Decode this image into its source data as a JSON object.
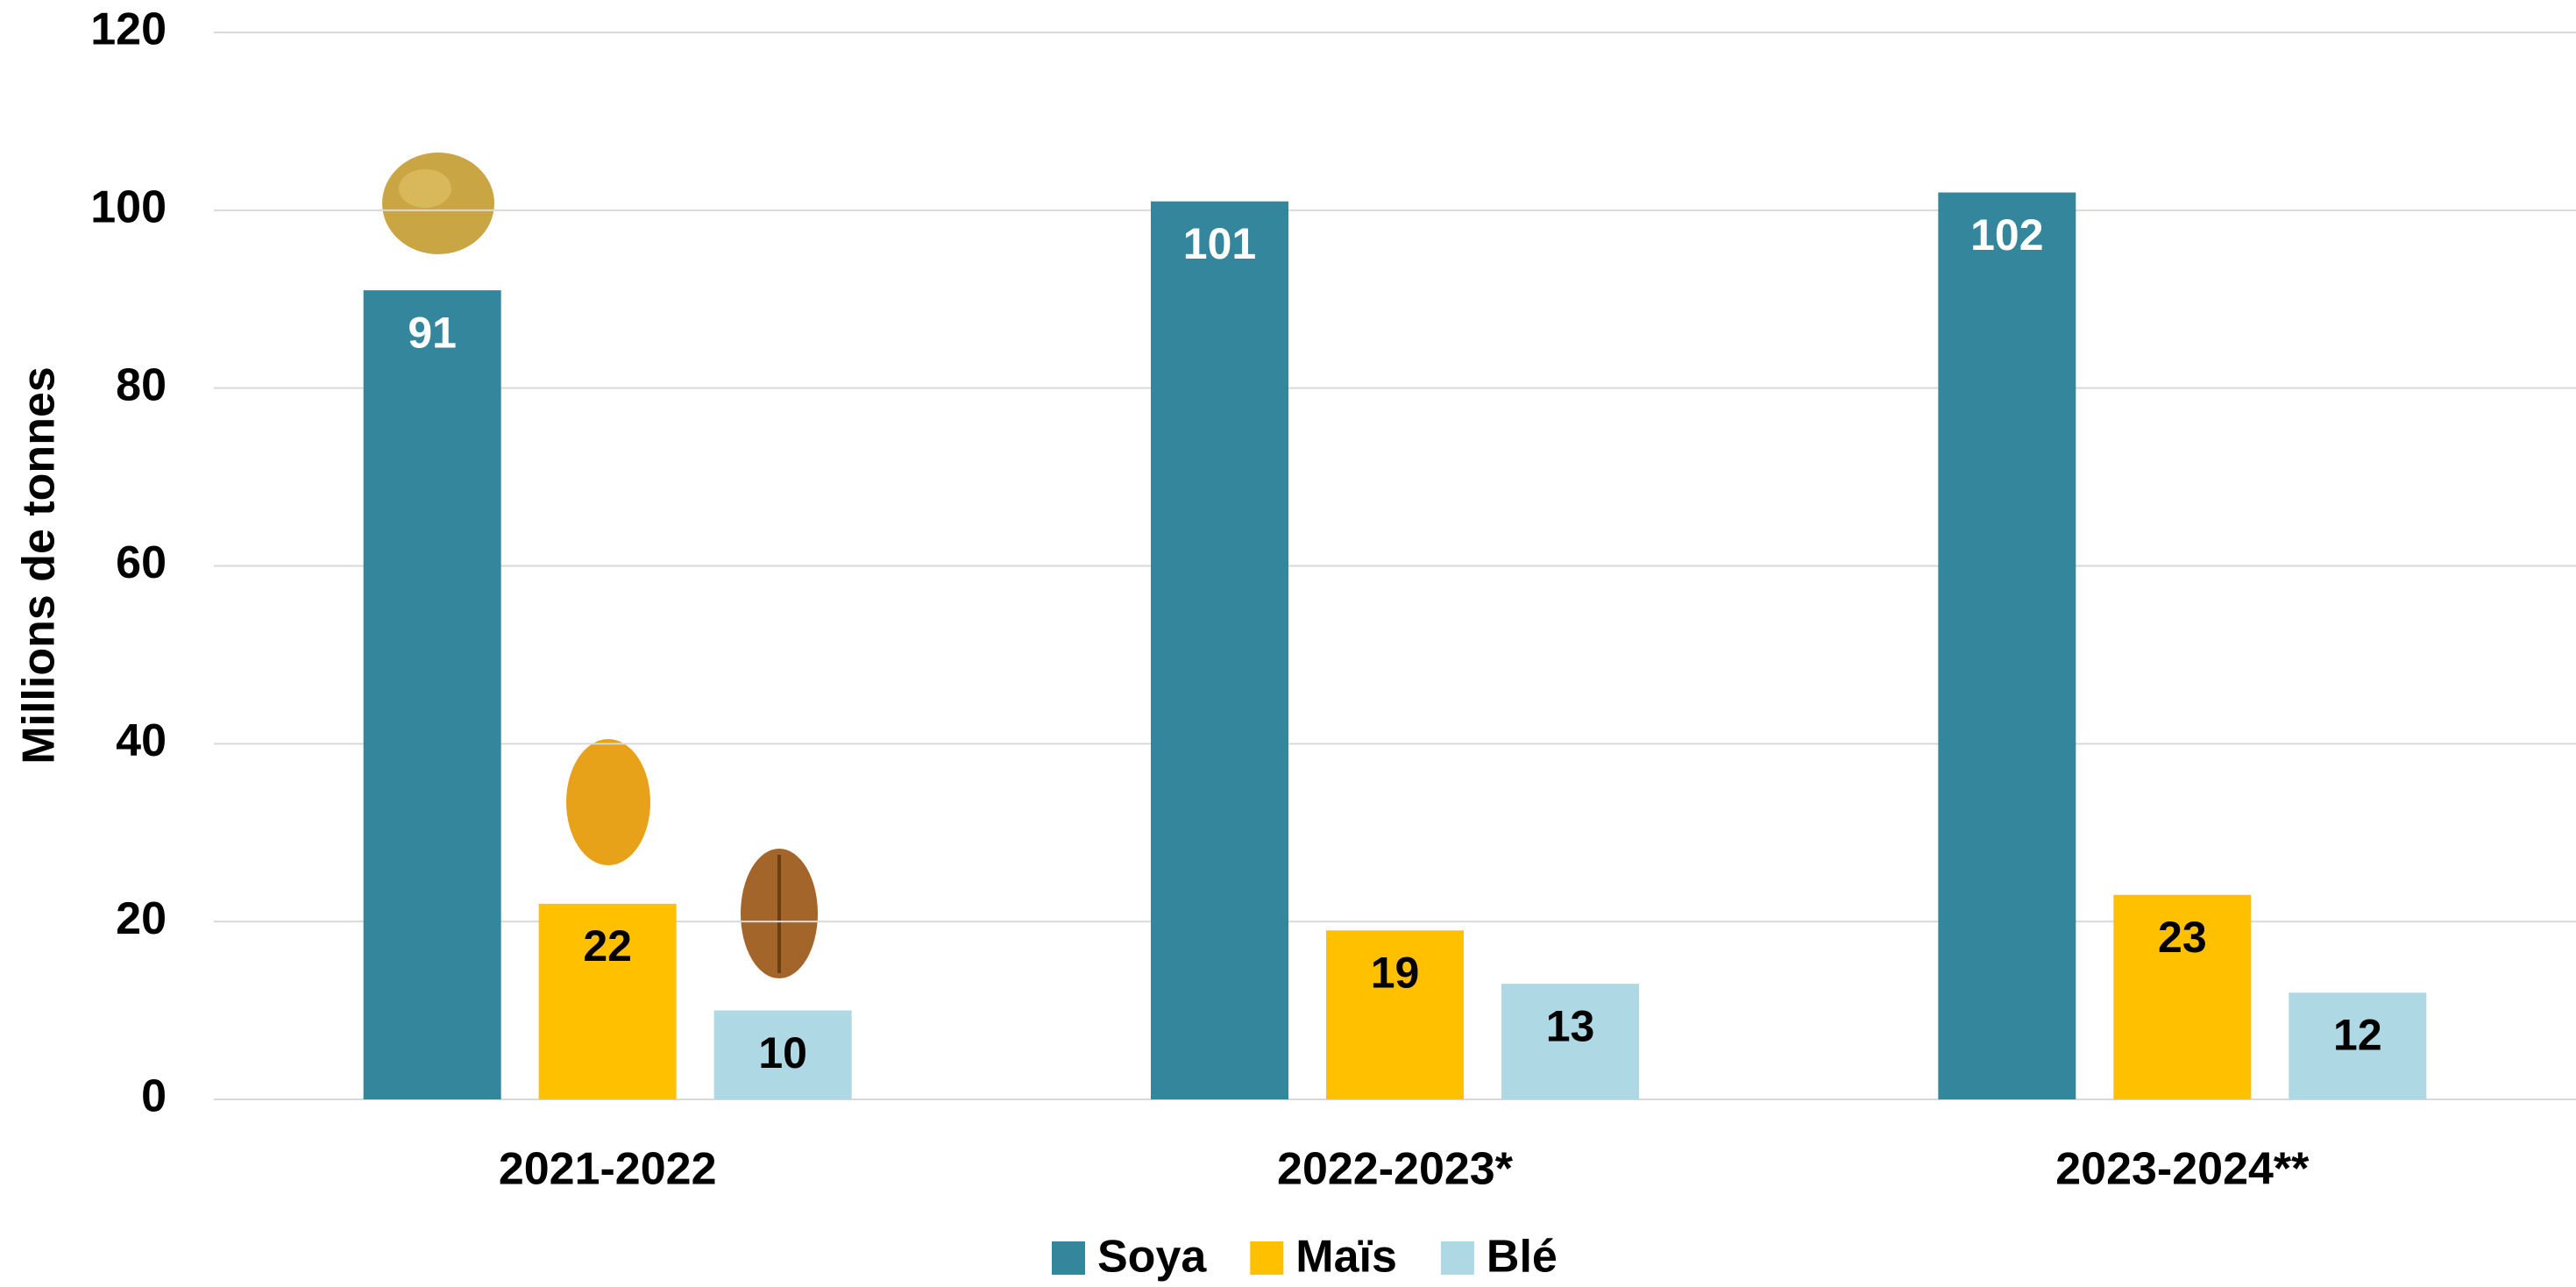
{
  "chart_data": {
    "type": "bar",
    "y_label": "Millions de tonnes",
    "categories": [
      "2021-2022",
      "2022-2023*",
      "2023-2024**"
    ],
    "series": [
      {
        "name": "Soya",
        "color": "#33869c",
        "label_color": "#ffffff",
        "values": [
          91,
          101,
          102
        ]
      },
      {
        "name": "Maïs",
        "color": "#ffc000",
        "label_color": "#000000",
        "values": [
          22,
          19,
          23
        ]
      },
      {
        "name": "Blé",
        "color": "#add8e4",
        "label_color": "#000000",
        "values": [
          10,
          13,
          12
        ]
      }
    ],
    "ylim": [
      0,
      120
    ],
    "yticks": [
      0,
      20,
      40,
      60,
      80,
      100,
      120
    ],
    "grid": true
  }
}
